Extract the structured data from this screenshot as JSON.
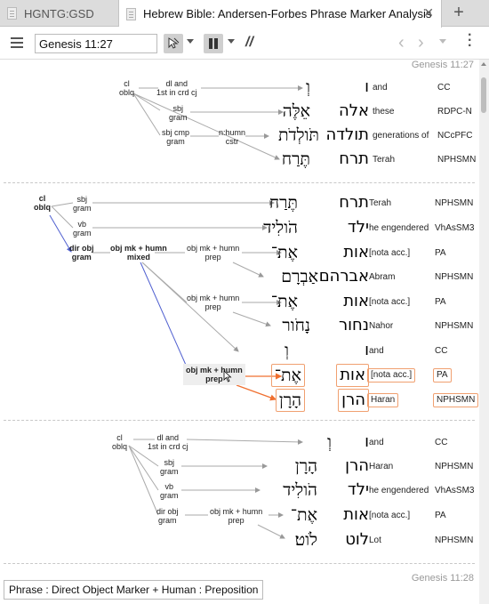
{
  "tabs": [
    {
      "label": "HGNTG:GSD",
      "active": false
    },
    {
      "label": "Hebrew Bible: Andersen-Forbes Phrase Marker Analysis",
      "active": true
    }
  ],
  "toolbar": {
    "reference": "Genesis 11:27",
    "parallel_label": "//"
  },
  "verse_refs": [
    "Genesis 11:27",
    "Genesis 11:28"
  ],
  "block1": {
    "nodes": {
      "cl": "cl",
      "oblq": "oblq",
      "dl": "dl and",
      "first_crd": "1st in crd cj",
      "sbj": "sbj",
      "gram1": "gram",
      "sbj_cmp": "sbj cmp",
      "gram2": "gram",
      "nhumn": "n:humn",
      "cstr": "cstr"
    },
    "rows": [
      {
        "pointed": "וְ",
        "plain": "ו",
        "gloss": "and",
        "morph": "CC"
      },
      {
        "pointed": "אֵלֶּה",
        "plain": "אלה",
        "gloss": "these",
        "morph": "RDPC-N"
      },
      {
        "pointed": "תֹּולְדֹת",
        "plain": "תולדה",
        "gloss": "generations of",
        "morph": "NCcPFC"
      },
      {
        "pointed": "תֶּרַח",
        "plain": "תרח",
        "gloss": "Terah",
        "morph": "NPHSMN"
      }
    ]
  },
  "block2": {
    "nodes": {
      "cl": "cl",
      "oblq": "oblq",
      "sbj": "sbj",
      "gram_sbj": "gram",
      "vb": "vb",
      "gram_vb": "gram",
      "dir_obj": "dir obj",
      "gram_dir": "gram",
      "objmk_humn": "obj mk + humn",
      "mixed": "mixed",
      "objmk1": "obj mk + humn",
      "prep1": "prep",
      "objmk2": "obj mk + humn",
      "prep2": "prep",
      "objmk3": "obj mk + humn",
      "prep3": "prep"
    },
    "rows": [
      {
        "pointed": "תֶּרַח",
        "plain": "תרח",
        "gloss": "Terah",
        "morph": "NPHSMN"
      },
      {
        "pointed": "הֹולִיד",
        "plain": "ילד",
        "gloss": "he engendered",
        "morph": "VhAsSM3"
      },
      {
        "pointed": "אֶת־",
        "plain": "אות",
        "gloss": "[nota acc.]",
        "morph": "PA"
      },
      {
        "pointed": "אַבְרָם",
        "plain": "אברהם",
        "gloss": "Abram",
        "morph": "NPHSMN"
      },
      {
        "pointed": "אֶת־",
        "plain": "אות",
        "gloss": "[nota acc.]",
        "morph": "PA"
      },
      {
        "pointed": "נָחֹור",
        "plain": "נחור",
        "gloss": "Nahor",
        "morph": "NPHSMN"
      },
      {
        "pointed": "וְ",
        "plain": "ו",
        "gloss": "and",
        "morph": "CC"
      },
      {
        "pointed": "אֶת־",
        "plain": "אות",
        "gloss": "[nota acc.]",
        "morph": "PA"
      },
      {
        "pointed": "הָרָן",
        "plain": "הרן",
        "gloss": "Haran",
        "morph": "NPHSMN"
      }
    ]
  },
  "block3": {
    "nodes": {
      "cl": "cl",
      "oblq": "oblq",
      "dl": "dl and",
      "first_crd": "1st in crd cj",
      "sbj": "sbj",
      "gram_sbj": "gram",
      "vb": "vb",
      "gram_vb": "gram",
      "dir_obj": "dir obj",
      "gram_dir": "gram",
      "objmk": "obj mk + humn",
      "prep": "prep"
    },
    "rows": [
      {
        "pointed": "וְ",
        "plain": "ו",
        "gloss": "and",
        "morph": "CC"
      },
      {
        "pointed": "הָרָן",
        "plain": "הרן",
        "gloss": "Haran",
        "morph": "NPHSMN"
      },
      {
        "pointed": "הֹולִיד",
        "plain": "ילד",
        "gloss": "he engendered",
        "morph": "VhAsSM3"
      },
      {
        "pointed": "אֶת־",
        "plain": "אות",
        "gloss": "[nota acc.]",
        "morph": "PA"
      },
      {
        "pointed": "לֹוט׃",
        "plain": "לוט",
        "gloss": "Lot",
        "morph": "NPHSMN"
      }
    ]
  },
  "status": "Phrase : Direct Object Marker + Human : Preposition",
  "colors": {
    "highlight": "#f07030",
    "blue_line": "#5060d0",
    "grey_line": "#a0a0a0"
  },
  "icons": [
    "menu-icon",
    "book-icon",
    "select-cursor-icon",
    "pause-icon",
    "back-icon",
    "forward-icon",
    "more-vert-icon",
    "close-icon",
    "add-tab-icon"
  ]
}
